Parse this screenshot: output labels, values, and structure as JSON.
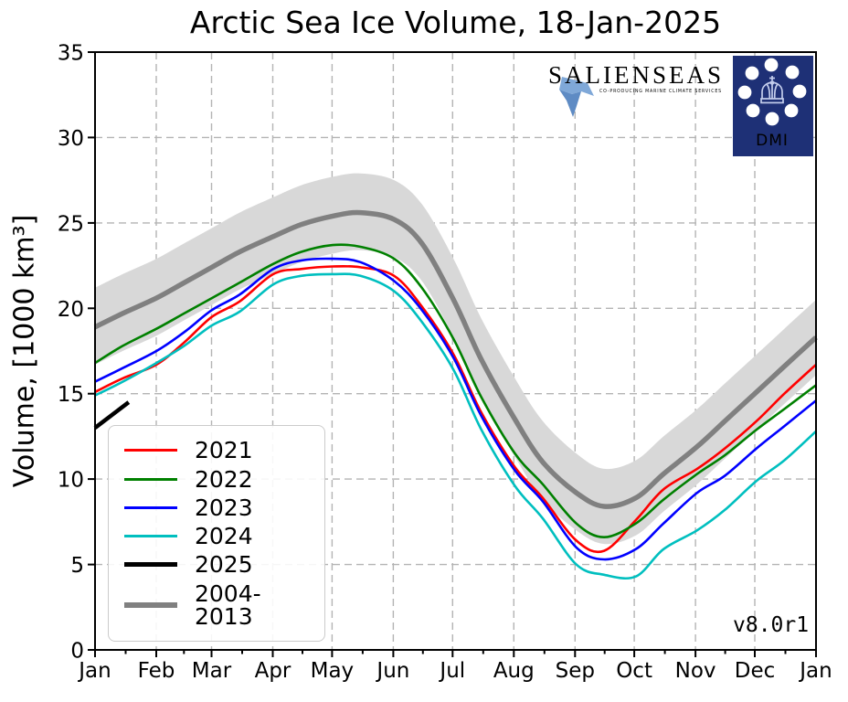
{
  "chart_data": {
    "type": "line",
    "title": "Arctic Sea Ice Volume, 18-Jan-2025",
    "xlabel": "",
    "ylabel": "Volume, [1000 km³]",
    "annotation": "v8.0r1",
    "ylim": [
      0,
      35
    ],
    "yticks": [
      0,
      5,
      10,
      15,
      20,
      25,
      30,
      35
    ],
    "xticklabels": [
      "Jan",
      "Feb",
      "Mar",
      "Apr",
      "May",
      "Jun",
      "Jul",
      "Aug",
      "Sep",
      "Oct",
      "Nov",
      "Dec",
      "Jan"
    ],
    "month_start_days": [
      1,
      32,
      60,
      91,
      121,
      152,
      182,
      213,
      244,
      274,
      305,
      335,
      366
    ],
    "x_units": "day_of_year",
    "grid": "dashed, both axes, major ticks only",
    "legend_position": "lower-left",
    "sample_days": [
      1,
      15,
      32,
      46,
      60,
      74,
      91,
      105,
      121,
      135,
      152,
      166,
      182,
      196,
      213,
      227,
      244,
      258,
      274,
      288,
      305,
      319,
      335,
      349,
      365
    ],
    "series": [
      {
        "name": "2021",
        "color": "#ff0000",
        "line_width": 2.6,
        "values": [
          15.1,
          15.9,
          16.7,
          18.0,
          19.5,
          20.4,
          22.0,
          22.3,
          22.45,
          22.4,
          21.9,
          20.1,
          17.3,
          13.9,
          10.7,
          8.9,
          6.4,
          5.8,
          7.6,
          9.4,
          10.6,
          11.8,
          13.4,
          15.0,
          16.7
        ]
      },
      {
        "name": "2022",
        "color": "#008000",
        "line_width": 2.6,
        "values": [
          16.8,
          17.8,
          18.8,
          19.7,
          20.6,
          21.5,
          22.6,
          23.3,
          23.7,
          23.6,
          22.9,
          21.2,
          18.2,
          14.8,
          11.5,
          9.7,
          7.4,
          6.6,
          7.4,
          8.8,
          10.3,
          11.4,
          12.9,
          14.1,
          15.5
        ]
      },
      {
        "name": "2023",
        "color": "#0000ff",
        "line_width": 2.6,
        "values": [
          15.7,
          16.5,
          17.5,
          18.6,
          19.9,
          20.8,
          22.3,
          22.8,
          22.9,
          22.7,
          21.6,
          19.9,
          17.1,
          13.7,
          10.5,
          8.7,
          6.0,
          5.3,
          5.9,
          7.4,
          9.2,
          10.2,
          11.8,
          13.1,
          14.6
        ]
      },
      {
        "name": "2024",
        "color": "#00bfbf",
        "line_width": 2.6,
        "values": [
          14.9,
          15.7,
          16.8,
          17.8,
          19.0,
          19.8,
          21.4,
          21.9,
          22.0,
          21.9,
          21.0,
          19.2,
          16.4,
          12.9,
          9.6,
          7.7,
          5.0,
          4.4,
          4.3,
          5.9,
          7.0,
          8.2,
          9.9,
          11.1,
          12.8
        ]
      },
      {
        "name": "2025",
        "color": "#000000",
        "line_width": 4.5,
        "days": [
          1,
          18
        ],
        "values": [
          13.0,
          14.5
        ]
      },
      {
        "name": "2004-2013",
        "color": "#808080",
        "line_width": 5.5,
        "values": [
          18.9,
          19.7,
          20.6,
          21.5,
          22.4,
          23.3,
          24.2,
          24.9,
          25.4,
          25.6,
          25.2,
          23.8,
          20.5,
          17.0,
          13.5,
          11.0,
          9.2,
          8.4,
          8.9,
          10.3,
          11.9,
          13.4,
          15.1,
          16.6,
          18.3
        ]
      }
    ],
    "band": {
      "name": "2004-2013 spread",
      "color": "#d8d8d8",
      "upper": [
        21.2,
        22.0,
        22.9,
        23.8,
        24.7,
        25.6,
        26.5,
        27.2,
        27.7,
        27.9,
        27.5,
        26.1,
        22.9,
        19.4,
        15.9,
        13.4,
        11.5,
        10.6,
        11.1,
        12.5,
        14.1,
        15.6,
        17.3,
        18.8,
        20.5
      ],
      "lower": [
        16.7,
        17.5,
        18.4,
        19.3,
        20.2,
        21.1,
        22.0,
        22.7,
        23.2,
        23.4,
        23.0,
        21.6,
        18.3,
        14.8,
        11.3,
        8.8,
        7.0,
        6.2,
        6.7,
        8.1,
        9.7,
        11.2,
        12.9,
        14.4,
        16.1
      ]
    }
  },
  "logos": {
    "salienseas": {
      "text": "SALIENSEAS",
      "tagline": "CO-PRODUCING MARINE CLIMATE SERVICES",
      "text_color": "#1c3564",
      "tagline_color": "#4472b8"
    },
    "dmi": {
      "text": "DMI",
      "background": "#1e3076"
    }
  }
}
